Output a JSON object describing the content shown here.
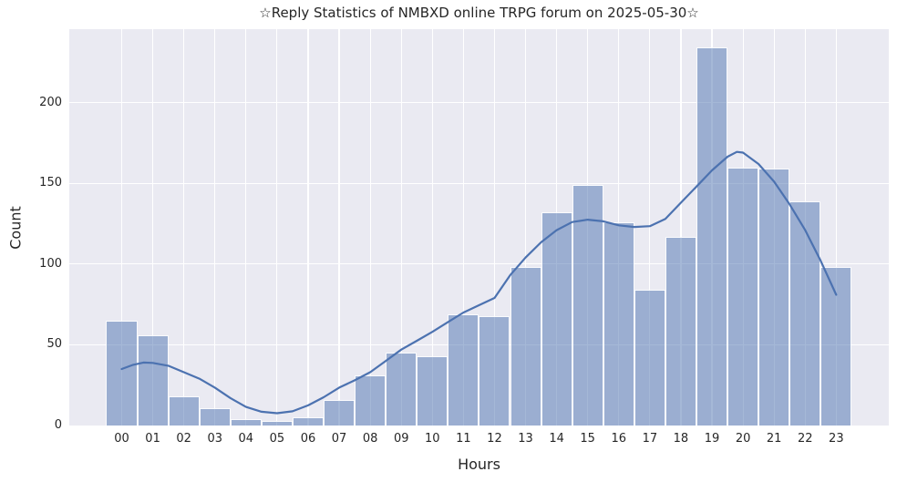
{
  "chart_data": {
    "type": "bar",
    "subtype": "histogram_with_kde",
    "title": "☆Reply Statistics of NMBXD online TRPG forum on 2025-05-30☆",
    "xlabel": "Hours",
    "ylabel": "Count",
    "categories": [
      "00",
      "01",
      "02",
      "03",
      "04",
      "05",
      "06",
      "07",
      "08",
      "09",
      "10",
      "11",
      "12",
      "13",
      "14",
      "15",
      "16",
      "17",
      "18",
      "19",
      "20",
      "21",
      "22",
      "23"
    ],
    "values": [
      65,
      56,
      18,
      11,
      4,
      3,
      5,
      16,
      31,
      45,
      43,
      69,
      68,
      98,
      132,
      149,
      126,
      84,
      117,
      234,
      160,
      159,
      139,
      98
    ],
    "kde_series_name": "kde-density-curve",
    "kde_points": [
      [
        0,
        35
      ],
      [
        0.35,
        37.5
      ],
      [
        0.7,
        39
      ],
      [
        1,
        38.8
      ],
      [
        1.5,
        37
      ],
      [
        2,
        33
      ],
      [
        2.5,
        29
      ],
      [
        3,
        23.5
      ],
      [
        3.5,
        17
      ],
      [
        4,
        11.5
      ],
      [
        4.5,
        8.5
      ],
      [
        5,
        7.6
      ],
      [
        5.5,
        8.8
      ],
      [
        6,
        12.5
      ],
      [
        6.5,
        17.5
      ],
      [
        7,
        23.5
      ],
      [
        7.5,
        28
      ],
      [
        8,
        33
      ],
      [
        8.5,
        40
      ],
      [
        9,
        47
      ],
      [
        9.5,
        52.5
      ],
      [
        10,
        58
      ],
      [
        10.5,
        64
      ],
      [
        11,
        70
      ],
      [
        11.5,
        74.5
      ],
      [
        12,
        79
      ],
      [
        12.5,
        93
      ],
      [
        13,
        104
      ],
      [
        13.5,
        113.5
      ],
      [
        14,
        121
      ],
      [
        14.5,
        126
      ],
      [
        15,
        127.5
      ],
      [
        15.5,
        126.5
      ],
      [
        16,
        124
      ],
      [
        16.5,
        123
      ],
      [
        17,
        123.5
      ],
      [
        17.5,
        128
      ],
      [
        18,
        138
      ],
      [
        18.5,
        148
      ],
      [
        19,
        158
      ],
      [
        19.5,
        166.5
      ],
      [
        19.8,
        169.5
      ],
      [
        20,
        169
      ],
      [
        20.5,
        162
      ],
      [
        21,
        151
      ],
      [
        21.5,
        137
      ],
      [
        22,
        121
      ],
      [
        22.5,
        102
      ],
      [
        23,
        81
      ]
    ],
    "yticks": [
      0,
      50,
      100,
      150,
      200
    ],
    "ylim": [
      0,
      245.5
    ],
    "grid": "both",
    "legend": "none",
    "colors": {
      "bar_fill": "rgba(76,114,176,0.5)",
      "bar_edge": "#ffffff",
      "kde_line": "#4c72b0",
      "plot_bg": "#eaeaf2",
      "grid_line": "#ffffff",
      "text": "#262626",
      "figure_bg": "#ffffff"
    }
  }
}
